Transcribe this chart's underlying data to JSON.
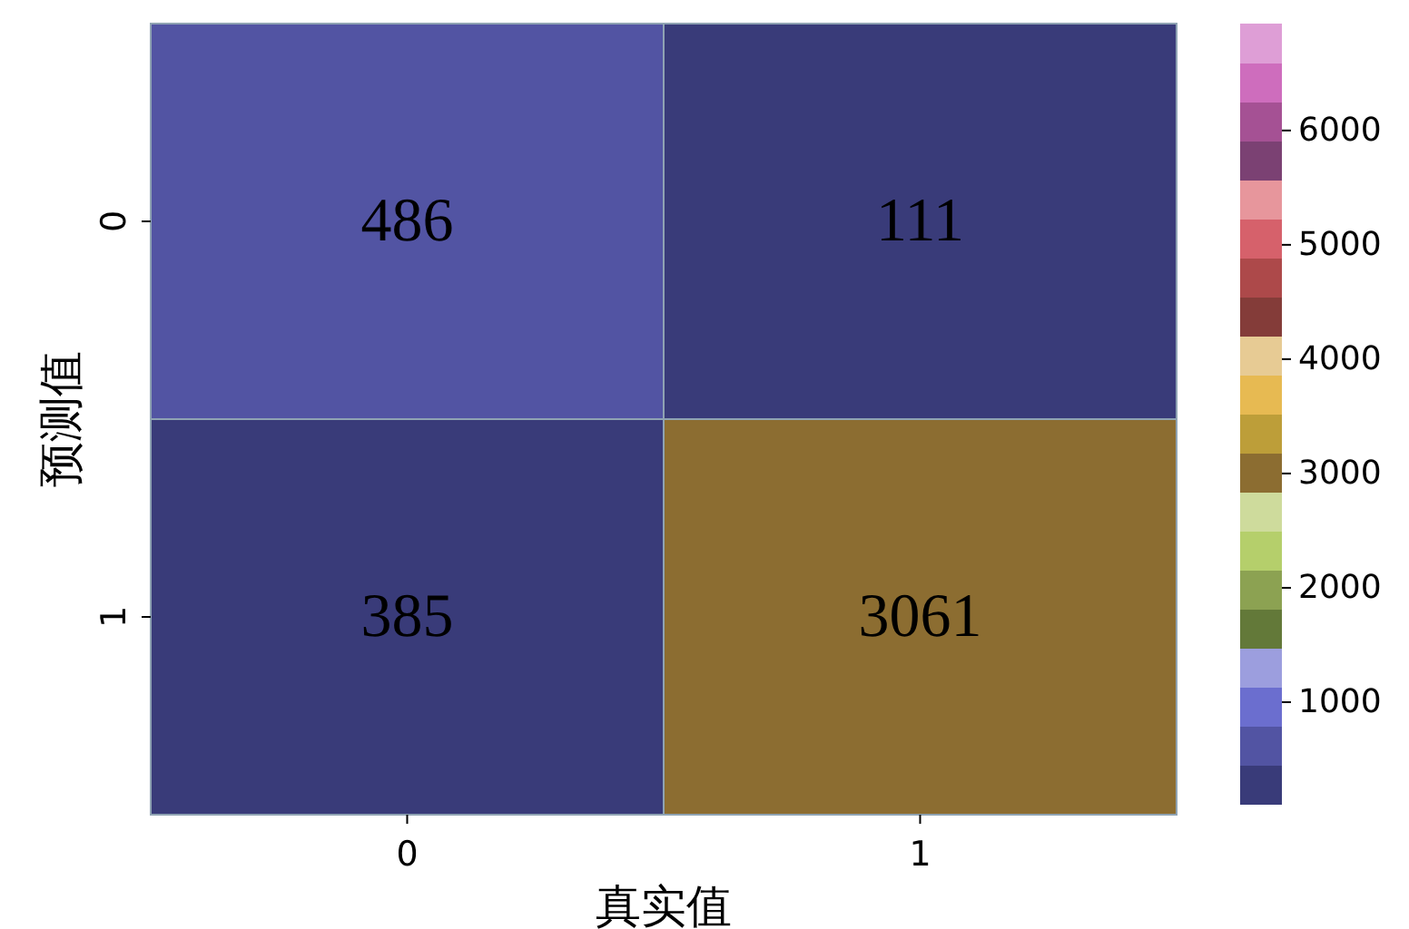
{
  "chart_data": {
    "type": "heatmap",
    "xlabel": "真实值",
    "ylabel": "预测值",
    "categories": [
      "0",
      "1"
    ],
    "y_categories": [
      "0",
      "1"
    ],
    "cells": [
      [
        486,
        111
      ],
      [
        385,
        3061
      ]
    ],
    "data_labels": true,
    "clim": [
      111,
      6935
    ],
    "cticks": [
      1000,
      2000,
      3000,
      4000,
      5000,
      6000
    ]
  }
}
